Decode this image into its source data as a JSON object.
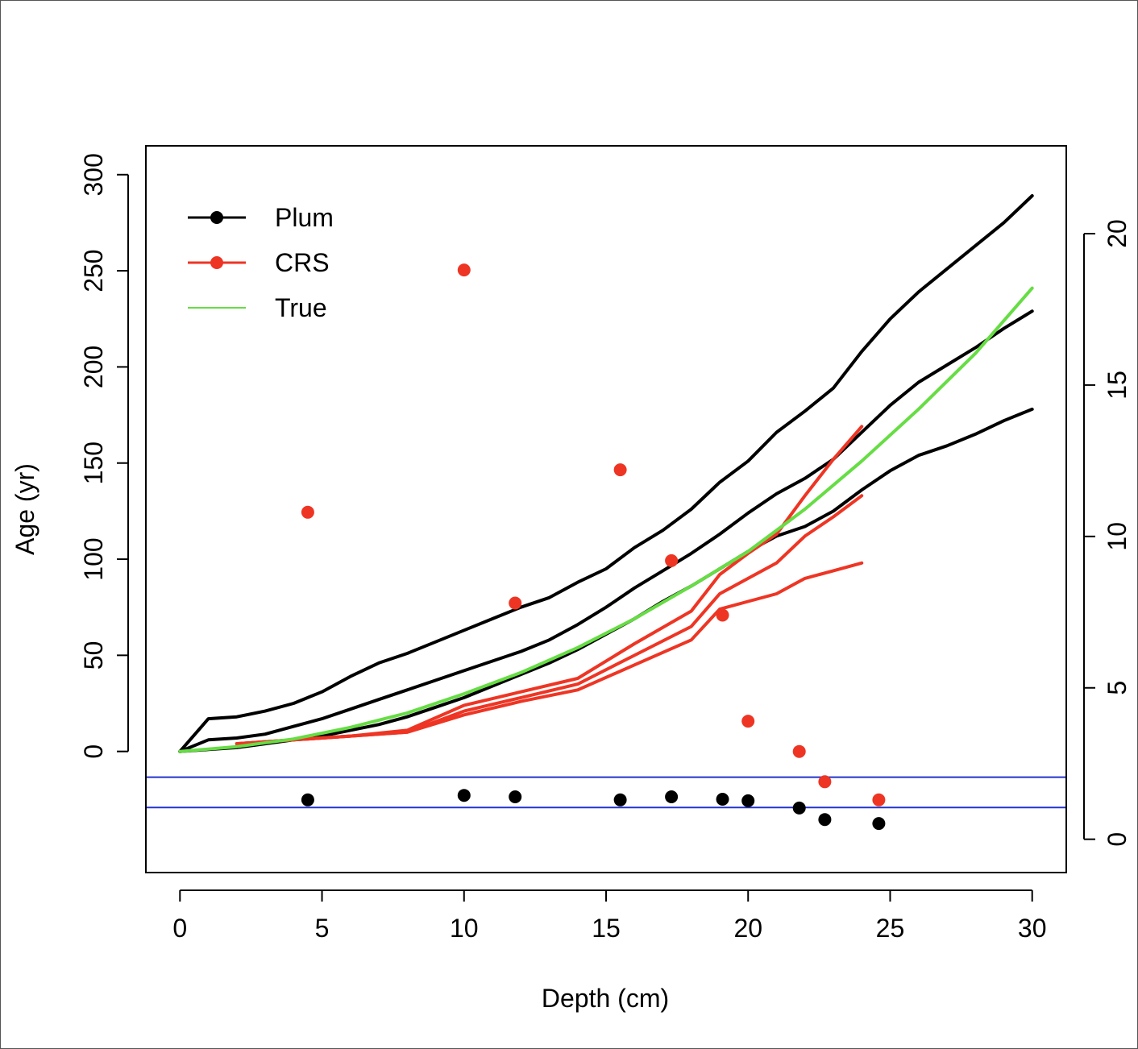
{
  "chart_data": {
    "type": "line",
    "title": "",
    "xlabel": "Depth (cm)",
    "ylabel": "Age (yr)",
    "y2label": "",
    "xlim": [
      -1.2,
      31.2
    ],
    "ylim": [
      -63,
      315
    ],
    "y2lim": [
      -1.1,
      22.9
    ],
    "x_ticks": [
      0,
      5,
      10,
      15,
      20,
      25,
      30
    ],
    "y_ticks": [
      0,
      50,
      100,
      150,
      200,
      250,
      300
    ],
    "y2_ticks": [
      0,
      5,
      10,
      15,
      20
    ],
    "legend": {
      "position": "top-left",
      "entries": [
        {
          "label": "Plum",
          "color": "#000000",
          "marker": "point"
        },
        {
          "label": "CRS",
          "color": "#ee3524",
          "marker": "point"
        },
        {
          "label": "True",
          "color": "#66dd44",
          "marker": "none"
        }
      ]
    },
    "colors": {
      "plum": "#000000",
      "crs": "#ee3524",
      "true": "#66dd44",
      "hlines": "#2233cc"
    },
    "series": [
      {
        "group": "Plum",
        "role": "upper",
        "color": "#000000",
        "x": [
          0,
          1,
          2,
          3,
          4,
          5,
          6,
          7,
          8,
          9,
          10,
          11,
          12,
          13,
          14,
          15,
          16,
          17,
          18,
          19,
          20,
          21,
          22,
          23,
          24,
          25,
          26,
          27,
          28,
          29,
          30
        ],
        "y": [
          0,
          17,
          18,
          21,
          25,
          31,
          39,
          46,
          51,
          57,
          63,
          69,
          75,
          80,
          88,
          95,
          106,
          115,
          126,
          140,
          151,
          166,
          177,
          189,
          208,
          225,
          239,
          251,
          263,
          275,
          289
        ]
      },
      {
        "group": "Plum",
        "role": "mean",
        "color": "#000000",
        "x": [
          0,
          1,
          2,
          3,
          4,
          5,
          6,
          7,
          8,
          9,
          10,
          11,
          12,
          13,
          14,
          15,
          16,
          17,
          18,
          19,
          20,
          21,
          22,
          23,
          24,
          25,
          26,
          27,
          28,
          29,
          30
        ],
        "y": [
          0,
          6,
          7,
          9,
          13,
          17,
          22,
          27,
          32,
          37,
          42,
          47,
          52,
          58,
          66,
          75,
          85,
          94,
          103,
          113,
          124,
          134,
          142,
          152,
          166,
          180,
          192,
          201,
          210,
          220,
          229
        ]
      },
      {
        "group": "Plum",
        "role": "lower",
        "color": "#000000",
        "x": [
          0,
          1,
          2,
          3,
          4,
          5,
          6,
          7,
          8,
          9,
          10,
          11,
          12,
          13,
          14,
          15,
          16,
          17,
          18,
          19,
          20,
          21,
          22,
          23,
          24,
          25,
          26,
          27,
          28,
          29,
          30
        ],
        "y": [
          0,
          1,
          2,
          4,
          6,
          8,
          11,
          14,
          18,
          23,
          28,
          34,
          40,
          46,
          53,
          61,
          69,
          78,
          86,
          95,
          104,
          112,
          117,
          125,
          136,
          146,
          154,
          159,
          165,
          172,
          178
        ]
      },
      {
        "group": "CRS",
        "role": "upper",
        "color": "#ee3524",
        "x": [
          2,
          4,
          6,
          8,
          10,
          12,
          14,
          16,
          18,
          19,
          20,
          21,
          22,
          23,
          24
        ],
        "y": [
          4,
          6,
          8,
          11,
          24,
          31,
          38,
          56,
          73,
          92,
          103,
          113,
          133,
          152,
          169
        ]
      },
      {
        "group": "CRS",
        "role": "mean",
        "color": "#ee3524",
        "x": [
          2,
          4,
          6,
          8,
          10,
          12,
          14,
          16,
          18,
          19,
          20,
          21,
          22,
          23,
          24
        ],
        "y": [
          4,
          6,
          8,
          10,
          21,
          28,
          35,
          50,
          65,
          82,
          90,
          98,
          112,
          122,
          133
        ]
      },
      {
        "group": "CRS",
        "role": "lower",
        "color": "#ee3524",
        "x": [
          2,
          4,
          6,
          8,
          10,
          12,
          14,
          16,
          18,
          19,
          20,
          21,
          22,
          23,
          24
        ],
        "y": [
          4,
          6,
          8,
          10,
          19,
          26,
          32,
          45,
          58,
          74,
          78,
          82,
          90,
          94,
          98
        ]
      },
      {
        "group": "True",
        "role": "true",
        "color": "#66dd44",
        "x": [
          0,
          2,
          4,
          6,
          8,
          10,
          12,
          14,
          16,
          18,
          20,
          22,
          24,
          26,
          28,
          30
        ],
        "y": [
          0,
          2.5,
          6.5,
          12.5,
          20,
          30,
          41,
          54,
          69,
          86,
          104,
          126,
          151,
          178,
          207,
          241
        ]
      }
    ],
    "points": [
      {
        "group": "CRS",
        "axis": "right",
        "color": "#ee3524",
        "x": [
          4.5,
          10,
          11.8,
          15.5,
          17.3,
          19.1,
          20,
          21.8,
          22.7,
          24.6
        ],
        "y": [
          10.8,
          18.8,
          7.8,
          12.2,
          9.2,
          7.4,
          3.9,
          2.9,
          1.9,
          1.3
        ]
      },
      {
        "group": "Plum",
        "axis": "right",
        "color": "#000000",
        "x": [
          4.5,
          10,
          11.8,
          15.5,
          17.3,
          19.1,
          20,
          21.8,
          22.7,
          24.6
        ],
        "y": [
          1.3,
          1.45,
          1.4,
          1.3,
          1.4,
          1.32,
          1.27,
          1.03,
          0.65,
          0.52
        ]
      }
    ],
    "hlines": {
      "axis": "right",
      "color": "#2233cc",
      "y": [
        2.05,
        1.05
      ]
    }
  }
}
